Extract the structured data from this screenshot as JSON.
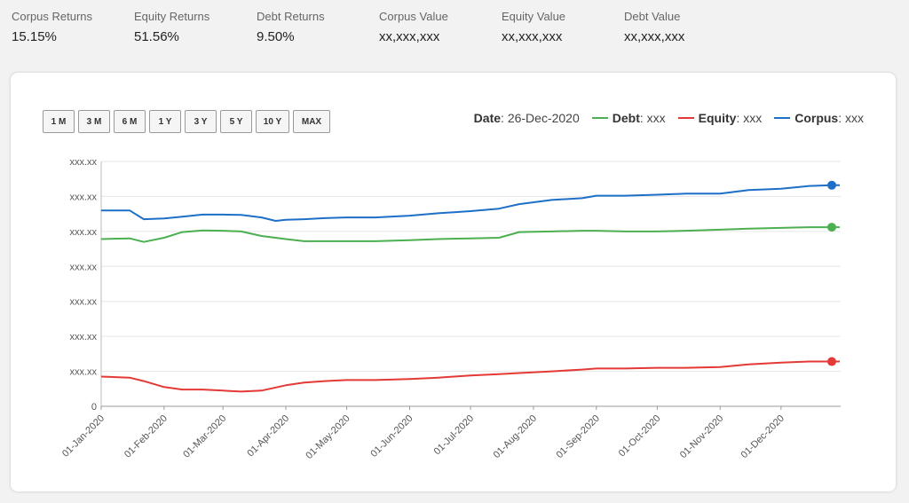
{
  "stats": [
    {
      "label": "Corpus Returns",
      "value": "15.15%"
    },
    {
      "label": "Equity Returns",
      "value": "51.56%"
    },
    {
      "label": "Debt Returns",
      "value": "9.50%"
    },
    {
      "label": "Corpus Value",
      "value": "xx,xxx,xxx"
    },
    {
      "label": "Equity Value",
      "value": "xx,xxx,xxx"
    },
    {
      "label": "Debt Value",
      "value": "xx,xxx,xxx"
    }
  ],
  "range_buttons": [
    "1 M",
    "3 M",
    "6 M",
    "1 Y",
    "3 Y",
    "5 Y",
    "10 Y",
    "MAX"
  ],
  "legend": {
    "date_label": "Date",
    "date_value": "26-Dec-2020",
    "debt_label": "Debt",
    "debt_value": "xxx",
    "equity_label": "Equity",
    "equity_value": "xxx",
    "corpus_label": "Corpus",
    "corpus_value": "xxx"
  },
  "colors": {
    "debt": "#4caf50",
    "equity": "#e53935",
    "corpus": "#1e6fc7",
    "grid": "#e6e6e6"
  },
  "chart_data": {
    "type": "line",
    "x_tick_labels": [
      "01-Jan-2020",
      "01-Feb-2020",
      "01-Mar-2020",
      "01-Apr-2020",
      "01-May-2020",
      "01-Jun-2020",
      "01-Jul-2020",
      "01-Aug-2020",
      "01-Sep-2020",
      "01-Oct-2020",
      "01-Nov-2020",
      "01-Dec-2020"
    ],
    "y_tick_labels": [
      "0",
      "xxx.xx",
      "xxx.xx",
      "xxx.xx",
      "xxx.xx",
      "xxx.xx",
      "xxx.xx",
      "xxx.xx"
    ],
    "ylim": [
      0,
      7
    ],
    "x_start": "2020-01-01",
    "x_end": "2020-12-26",
    "grid": true,
    "legend_position": "top-right",
    "series": [
      {
        "name": "Corpus",
        "color": "#1e6fc7",
        "values": [
          [
            "2020-01-01",
            5.6
          ],
          [
            "2020-01-08",
            5.6
          ],
          [
            "2020-01-15",
            5.6
          ],
          [
            "2020-01-22",
            5.35
          ],
          [
            "2020-02-01",
            5.37
          ],
          [
            "2020-02-10",
            5.42
          ],
          [
            "2020-02-20",
            5.48
          ],
          [
            "2020-03-01",
            5.48
          ],
          [
            "2020-03-10",
            5.47
          ],
          [
            "2020-03-20",
            5.4
          ],
          [
            "2020-03-27",
            5.3
          ],
          [
            "2020-04-01",
            5.33
          ],
          [
            "2020-04-10",
            5.35
          ],
          [
            "2020-04-20",
            5.38
          ],
          [
            "2020-05-01",
            5.4
          ],
          [
            "2020-05-15",
            5.4
          ],
          [
            "2020-06-01",
            5.45
          ],
          [
            "2020-06-15",
            5.52
          ],
          [
            "2020-07-01",
            5.58
          ],
          [
            "2020-07-15",
            5.65
          ],
          [
            "2020-07-25",
            5.78
          ],
          [
            "2020-08-10",
            5.9
          ],
          [
            "2020-08-25",
            5.95
          ],
          [
            "2020-09-01",
            6.02
          ],
          [
            "2020-09-15",
            6.02
          ],
          [
            "2020-10-01",
            6.05
          ],
          [
            "2020-10-15",
            6.08
          ],
          [
            "2020-11-01",
            6.08
          ],
          [
            "2020-11-15",
            6.18
          ],
          [
            "2020-12-01",
            6.22
          ],
          [
            "2020-12-15",
            6.3
          ],
          [
            "2020-12-26",
            6.32
          ]
        ]
      },
      {
        "name": "Debt",
        "color": "#4caf50",
        "values": [
          [
            "2020-01-01",
            4.78
          ],
          [
            "2020-01-15",
            4.8
          ],
          [
            "2020-01-22",
            4.7
          ],
          [
            "2020-02-01",
            4.82
          ],
          [
            "2020-02-10",
            4.98
          ],
          [
            "2020-02-20",
            5.03
          ],
          [
            "2020-03-01",
            5.02
          ],
          [
            "2020-03-10",
            5.0
          ],
          [
            "2020-03-20",
            4.87
          ],
          [
            "2020-04-01",
            4.78
          ],
          [
            "2020-04-10",
            4.72
          ],
          [
            "2020-04-20",
            4.72
          ],
          [
            "2020-05-01",
            4.72
          ],
          [
            "2020-05-15",
            4.72
          ],
          [
            "2020-06-01",
            4.75
          ],
          [
            "2020-06-15",
            4.78
          ],
          [
            "2020-07-01",
            4.8
          ],
          [
            "2020-07-15",
            4.82
          ],
          [
            "2020-07-25",
            4.98
          ],
          [
            "2020-08-10",
            5.0
          ],
          [
            "2020-08-25",
            5.02
          ],
          [
            "2020-09-01",
            5.02
          ],
          [
            "2020-09-15",
            5.0
          ],
          [
            "2020-10-01",
            5.0
          ],
          [
            "2020-10-15",
            5.02
          ],
          [
            "2020-11-01",
            5.05
          ],
          [
            "2020-11-15",
            5.08
          ],
          [
            "2020-12-01",
            5.1
          ],
          [
            "2020-12-15",
            5.12
          ],
          [
            "2020-12-26",
            5.12
          ]
        ]
      },
      {
        "name": "Equity",
        "color": "#e53935",
        "values": [
          [
            "2020-01-01",
            0.85
          ],
          [
            "2020-01-15",
            0.82
          ],
          [
            "2020-01-22",
            0.72
          ],
          [
            "2020-02-01",
            0.55
          ],
          [
            "2020-02-10",
            0.48
          ],
          [
            "2020-02-20",
            0.48
          ],
          [
            "2020-03-01",
            0.45
          ],
          [
            "2020-03-10",
            0.42
          ],
          [
            "2020-03-20",
            0.45
          ],
          [
            "2020-04-01",
            0.6
          ],
          [
            "2020-04-10",
            0.68
          ],
          [
            "2020-04-20",
            0.72
          ],
          [
            "2020-05-01",
            0.75
          ],
          [
            "2020-05-15",
            0.75
          ],
          [
            "2020-06-01",
            0.78
          ],
          [
            "2020-06-15",
            0.82
          ],
          [
            "2020-07-01",
            0.88
          ],
          [
            "2020-07-15",
            0.92
          ],
          [
            "2020-07-25",
            0.95
          ],
          [
            "2020-08-10",
            1.0
          ],
          [
            "2020-08-25",
            1.05
          ],
          [
            "2020-09-01",
            1.08
          ],
          [
            "2020-09-15",
            1.08
          ],
          [
            "2020-10-01",
            1.1
          ],
          [
            "2020-10-15",
            1.1
          ],
          [
            "2020-11-01",
            1.12
          ],
          [
            "2020-11-15",
            1.2
          ],
          [
            "2020-12-01",
            1.25
          ],
          [
            "2020-12-15",
            1.28
          ],
          [
            "2020-12-26",
            1.28
          ]
        ]
      }
    ]
  }
}
